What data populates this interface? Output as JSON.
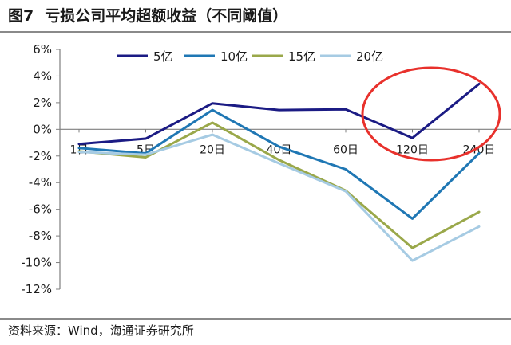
{
  "figure": {
    "number": "图7",
    "title": "亏损公司平均超额收益（不同阈值）"
  },
  "source": "资料来源：Wind，海通证券研究所",
  "chart_data": {
    "type": "line",
    "categories": [
      "1日",
      "5日",
      "20日",
      "40日",
      "60日",
      "120日",
      "240日"
    ],
    "ylim": [
      -12,
      6
    ],
    "yticks": [
      6,
      4,
      2,
      0,
      -2,
      -4,
      -6,
      -8,
      -10,
      -12
    ],
    "ytick_suffix": "%",
    "grid": false,
    "legend_position": "top",
    "series": [
      {
        "name": "5亿",
        "color": "#1b1b84",
        "values": [
          -1.1,
          -0.7,
          1.95,
          1.45,
          1.5,
          -0.65,
          3.4
        ]
      },
      {
        "name": "10亿",
        "color": "#1f77b4",
        "values": [
          -1.4,
          -1.8,
          1.45,
          -1.3,
          -3.0,
          -6.7,
          -1.8
        ]
      },
      {
        "name": "15亿",
        "color": "#9aa84a",
        "values": [
          -1.65,
          -2.1,
          0.5,
          -2.3,
          -4.6,
          -8.9,
          -6.2
        ]
      },
      {
        "name": "20亿",
        "color": "#a6cbe3",
        "values": [
          -1.7,
          -1.9,
          -0.4,
          -2.55,
          -4.65,
          -9.85,
          -7.3
        ]
      }
    ],
    "annotation": {
      "type": "ellipse",
      "color": "#e8312c",
      "around_categories": [
        "120日",
        "240日"
      ]
    }
  }
}
